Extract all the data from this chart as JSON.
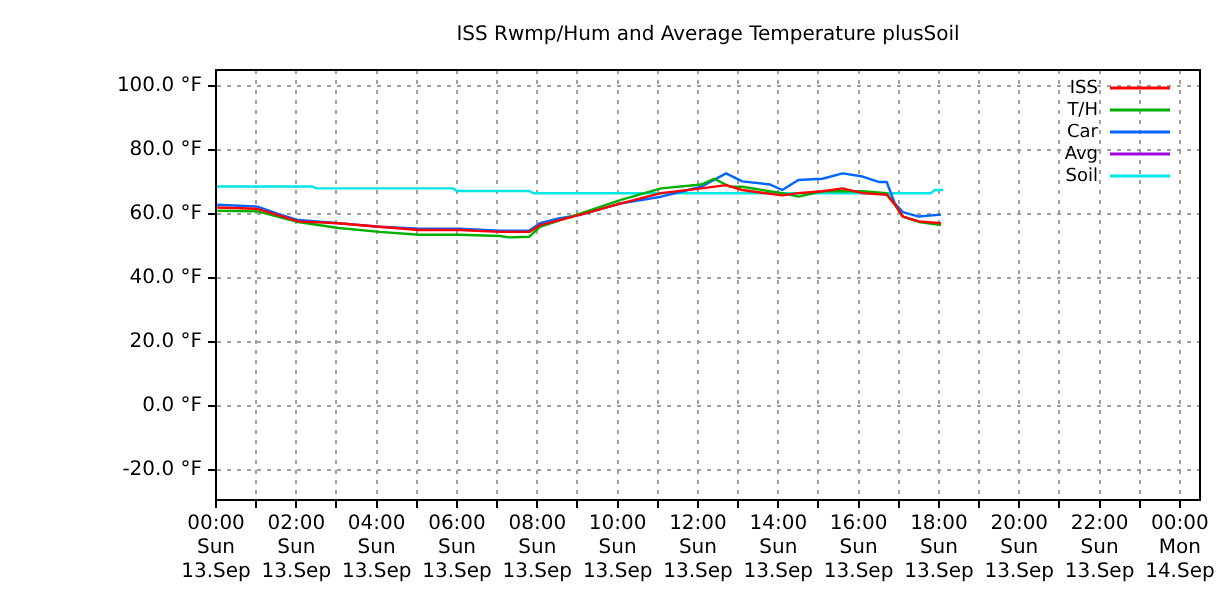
{
  "chart_data": {
    "type": "line",
    "title": "ISS Rwmp/Hum and Average Temperature plusSoil",
    "xlim": [
      "--09-13T00:00",
      "--09-14T00:30"
    ],
    "ylim": [
      -29.4,
      105
    ],
    "xticks": [
      {
        "value": "--09-13T00:00",
        "label": "00:00\nSun\n13.Sep"
      },
      {
        "value": "--09-13T01:00",
        "label": null
      },
      {
        "value": "--09-13T02:00",
        "label": "02:00\nSun\n13.Sep"
      },
      {
        "value": "--09-13T03:00",
        "label": null
      },
      {
        "value": "--09-13T04:00",
        "label": "04:00\nSun\n13.Sep"
      },
      {
        "value": "--09-13T05:00",
        "label": null
      },
      {
        "value": "--09-13T06:00",
        "label": "06:00\nSun\n13.Sep"
      },
      {
        "value": "--09-13T07:00",
        "label": null
      },
      {
        "value": "--09-13T08:00",
        "label": "08:00\nSun\n13.Sep"
      },
      {
        "value": "--09-13T09:00",
        "label": null
      },
      {
        "value": "--09-13T10:00",
        "label": "10:00\nSun\n13.Sep"
      },
      {
        "value": "--09-13T11:00",
        "label": null
      },
      {
        "value": "--09-13T12:00",
        "label": "12:00\nSun\n13.Sep"
      },
      {
        "value": "--09-13T13:00",
        "label": null
      },
      {
        "value": "--09-13T14:00",
        "label": "14:00\nSun\n13.Sep"
      },
      {
        "value": "--09-13T15:00",
        "label": null
      },
      {
        "value": "--09-13T16:00",
        "label": "16:00\nSun\n13.Sep"
      },
      {
        "value": "--09-13T17:00",
        "label": null
      },
      {
        "value": "--09-13T18:00",
        "label": "18:00\nSun\n13.Sep"
      },
      {
        "value": "--09-13T19:00",
        "label": null
      },
      {
        "value": "--09-13T20:00",
        "label": "20:00\nSun\n13.Sep"
      },
      {
        "value": "--09-13T21:00",
        "label": null
      },
      {
        "value": "--09-13T22:00",
        "label": "22:00\nSun\n13.Sep"
      },
      {
        "value": "--09-13T23:00",
        "label": null
      },
      {
        "value": "--09-14T00:00",
        "label": "00:00\nMon\n14.Sep"
      }
    ],
    "yticks": [
      {
        "value": -20,
        "label": "-20.0 °F"
      },
      {
        "value": 0,
        "label": "0.0 °F"
      },
      {
        "value": 20,
        "label": "20.0 °F"
      },
      {
        "value": 40,
        "label": "40.0 °F"
      },
      {
        "value": 60,
        "label": "60.0 °F"
      },
      {
        "value": 80,
        "label": "80.0 °F"
      },
      {
        "value": 100,
        "label": "100.0 °F"
      }
    ],
    "grid": true,
    "legend": "top right",
    "marker": "none",
    "line_style": "solid",
    "series": [
      {
        "name": "ISS",
        "color": "#ff0000",
        "x": [
          "--09-13T00:02",
          "--09-13T01:02",
          "--09-13T02:03",
          "--09-13T03:03",
          "--09-13T04:04",
          "--09-13T05:04",
          "--09-13T06:04",
          "--09-13T07:04",
          "--09-13T07:48",
          "--09-13T08:04",
          "--09-13T09:05",
          "--09-13T10:05",
          "--09-13T11:05",
          "--09-13T12:05",
          "--09-13T12:42",
          "--09-13T13:06",
          "--09-13T14:06",
          "--09-13T14:30",
          "--09-13T15:06",
          "--09-13T15:36",
          "--09-13T16:06",
          "--09-13T16:42",
          "--09-13T16:54",
          "--09-13T17:06",
          "--09-13T17:30",
          "--09-13T18:03"
        ],
        "values": [
          62,
          61.6,
          57.7,
          57.1,
          56,
          55,
          55,
          54.4,
          54.4,
          56.5,
          59.8,
          63.3,
          66.5,
          68,
          69,
          67.5,
          65.8,
          66.5,
          67.1,
          68,
          66.5,
          66,
          63,
          59.2,
          57.7,
          57.1
        ]
      },
      {
        "name": "T/H",
        "color": "#00b000",
        "x": [
          "--09-13T00:02",
          "--09-13T01:02",
          "--09-13T02:03",
          "--09-13T03:03",
          "--09-13T04:04",
          "--09-13T05:04",
          "--09-13T06:04",
          "--09-13T07:04",
          "--09-13T07:18",
          "--09-13T07:48",
          "--09-13T08:04",
          "--09-13T09:05",
          "--09-13T10:05",
          "--09-13T11:05",
          "--09-13T12:05",
          "--09-13T12:24",
          "--09-13T12:48",
          "--09-13T13:06",
          "--09-13T14:06",
          "--09-13T14:30",
          "--09-13T15:06",
          "--09-13T16:06",
          "--09-13T16:42",
          "--09-13T16:54",
          "--09-13T17:06",
          "--09-13T17:30",
          "--09-13T18:03"
        ],
        "values": [
          61,
          60.8,
          57.5,
          55.6,
          54.4,
          53.5,
          53.5,
          53.1,
          52.7,
          52.9,
          56,
          60.2,
          64.4,
          68,
          69.2,
          71,
          68.5,
          68.5,
          66.5,
          65.4,
          67.1,
          67.1,
          66.5,
          63,
          59.2,
          57.5,
          56.5
        ]
      },
      {
        "name": "Car",
        "color": "#0066ff",
        "x": [
          "--09-13T00:02",
          "--09-13T01:02",
          "--09-13T01:36",
          "--09-13T02:03",
          "--09-13T03:03",
          "--09-13T04:04",
          "--09-13T05:04",
          "--09-13T06:04",
          "--09-13T07:04",
          "--09-13T07:48",
          "--09-13T08:04",
          "--09-13T08:30",
          "--09-13T09:05",
          "--09-13T10:05",
          "--09-13T11:05",
          "--09-13T12:05",
          "--09-13T12:42",
          "--09-13T13:06",
          "--09-13T13:48",
          "--09-13T14:06",
          "--09-13T14:30",
          "--09-13T15:06",
          "--09-13T15:36",
          "--09-13T16:06",
          "--09-13T16:30",
          "--09-13T16:42",
          "--09-13T16:54",
          "--09-13T17:06",
          "--09-13T17:30",
          "--09-13T18:03"
        ],
        "values": [
          62.9,
          62.3,
          59.8,
          58.1,
          57.1,
          56,
          55.4,
          55.4,
          54.8,
          54.8,
          57.1,
          58.5,
          59.8,
          63.3,
          65.4,
          68.5,
          72.7,
          70.2,
          69.2,
          67.5,
          70.6,
          71,
          72.7,
          71.7,
          70,
          70,
          63.3,
          60.6,
          59.2,
          59.8
        ]
      },
      {
        "name": "Avg",
        "color": "#a000e0"
      },
      {
        "name": "Soil",
        "color": "#00e5e5",
        "x": [
          "--09-13T00:00",
          "--09-13T02:24",
          "--09-13T02:30",
          "--09-13T05:54",
          "--09-13T06:00",
          "--09-13T07:48",
          "--09-13T07:54",
          "--09-13T17:48",
          "--09-13T17:54",
          "--09-13T18:06"
        ],
        "values": [
          68.6,
          68.6,
          68.0,
          68.0,
          67.2,
          67.2,
          66.5,
          66.5,
          67.5,
          67.5
        ]
      }
    ]
  }
}
